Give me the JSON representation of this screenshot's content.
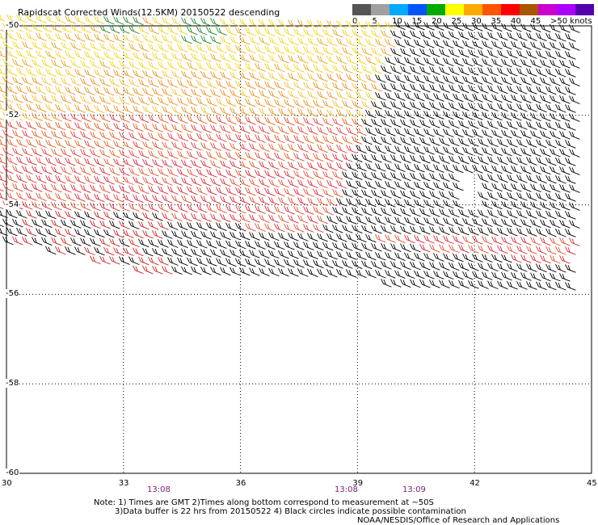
{
  "title": "Rapidscat Corrected Winds(12.5KM) 20150522 descending",
  "legend": {
    "colors": [
      "#555555",
      "#a0a0a0",
      "#00aaff",
      "#0055ff",
      "#00aa00",
      "#ffff00",
      "#ffaa00",
      "#ff5500",
      "#ff0000",
      "#aa5500",
      "#cc00cc",
      "#aa00ff",
      "#5500aa"
    ],
    "labels": [
      "0",
      "5",
      "10",
      "15",
      "20",
      "25",
      "30",
      "35",
      "40",
      "45",
      ">50 knots"
    ],
    "unit": "knots"
  },
  "map": {
    "lon_labels": [
      "30",
      "33",
      "36",
      "39",
      "42",
      "45"
    ],
    "lat_labels": [
      "-50",
      "-52",
      "-54",
      "-56",
      "-58",
      "-60"
    ],
    "time_labels": [
      "13:08",
      "13:08",
      "13:09"
    ],
    "lon_range": [
      30,
      45
    ],
    "lat_range": [
      -60,
      -50
    ],
    "grid": "dotted"
  },
  "footer": {
    "note1": "Note: 1) Times are GMT 2)Times along bottom correspond to measurement at ~50S",
    "note2": "3)Data buffer is 22 hrs from 20150522 4) Black circles indicate possible contamination",
    "credit": "NOAA/NESDIS/Office of Research and Applications"
  }
}
